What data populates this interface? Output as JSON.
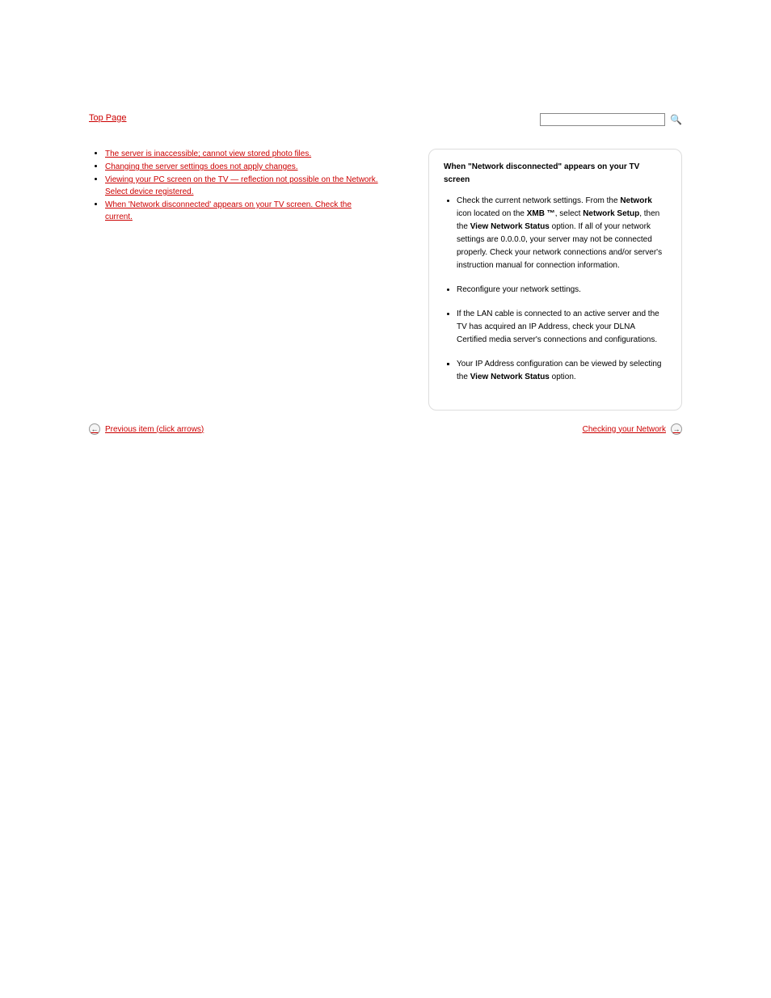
{
  "header": {
    "top_link": "Top Page",
    "search_placeholder": ""
  },
  "left": {
    "items": [
      {
        "label": "The server is inaccessible; cannot view stored photo files.",
        "sub": null
      },
      {
        "label": "Changing the server settings does not apply changes.",
        "sub": null
      },
      {
        "label": "Viewing your PC screen on the TV — reflection not possible on the Network.",
        "sub": "Select device registered."
      },
      {
        "label": "When 'Network disconnected' appears on your TV screen. Check the",
        "sub": "current."
      }
    ]
  },
  "card": {
    "title": "When \"Network disconnected\" appears on your TV screen",
    "para1": {
      "pre": "Check the current network settings. From the ",
      "b1": "Network",
      "mid1": " icon located on the ",
      "b2": "XMB ™",
      "mid2": ", select ",
      "b3": "Network Setup",
      "mid3": ", then the ",
      "b4": "View Network Status",
      "post": " option. If all of your network settings are 0.0.0.0, your server may not be connected properly. Check your network connections and/or server's instruction manual for connection information."
    },
    "para2": "Reconfigure your network settings.",
    "para3": "If the LAN cable is connected to an active server and the TV has acquired an IP Address, check your DLNA Certified media server's connections and configurations.",
    "para4": {
      "pre": "Your IP Address configuration can be viewed by selecting the ",
      "b1": "View Network Status",
      "post": " option."
    }
  },
  "nav": {
    "prev": "Previous item (click arrows)",
    "next": "Checking your Network"
  }
}
